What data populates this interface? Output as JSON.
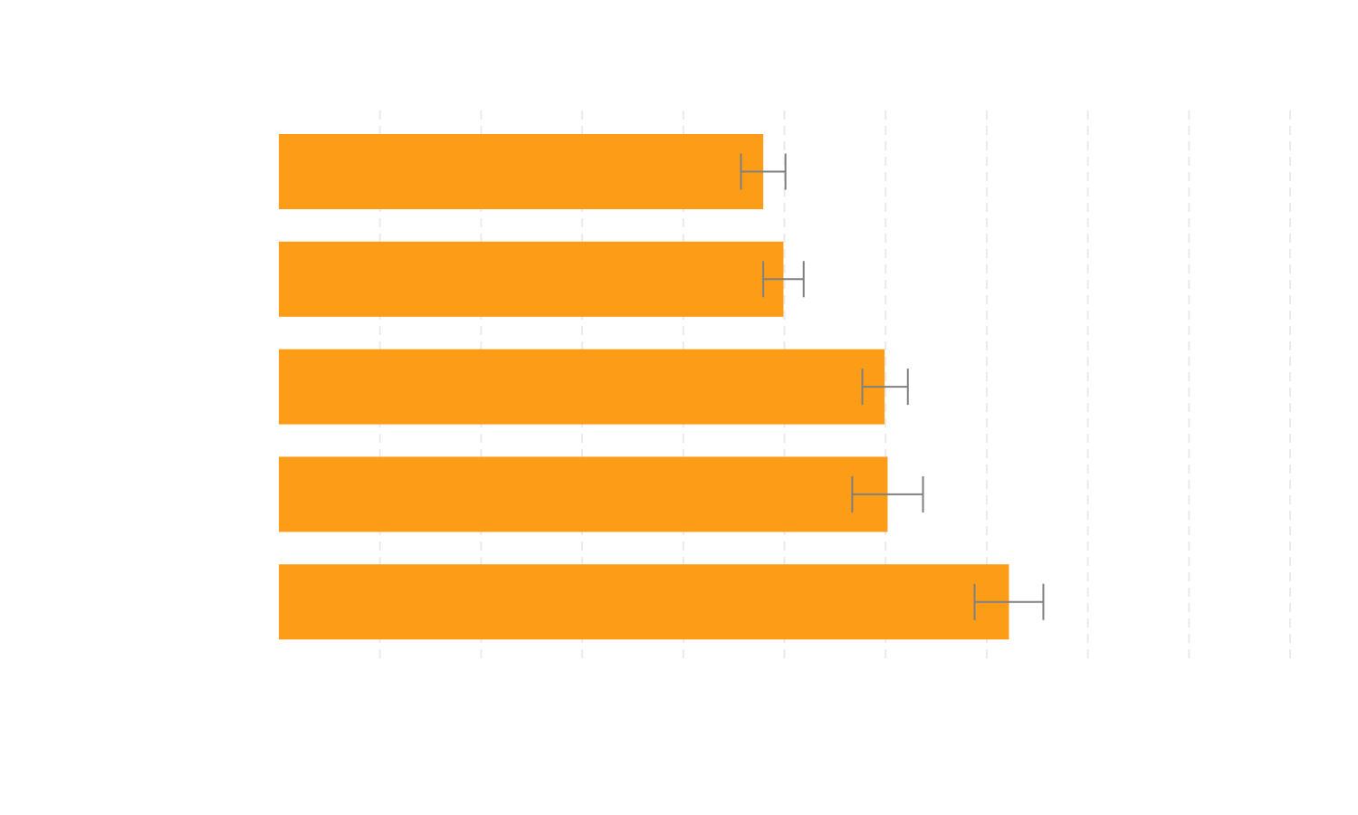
{
  "chart_data": {
    "type": "bar",
    "orientation": "horizontal",
    "categories": [
      "",
      "",
      "",
      "",
      ""
    ],
    "values": [
      4.79,
      4.99,
      5.99,
      6.02,
      7.22
    ],
    "error_low": [
      4.57,
      4.79,
      5.77,
      5.67,
      6.88
    ],
    "error_high": [
      5.01,
      5.19,
      6.22,
      6.37,
      7.56
    ],
    "xlim": [
      0,
      10
    ],
    "x_gridlines": [
      1,
      2,
      3,
      4,
      5,
      6,
      7,
      8,
      9,
      10
    ],
    "grid": true,
    "grid_style": "dashed",
    "title": "",
    "xlabel": "",
    "ylabel": "",
    "colors": {
      "bar": "#fc9910",
      "error_bar": "#808080",
      "grid": "#ebebeb"
    }
  }
}
